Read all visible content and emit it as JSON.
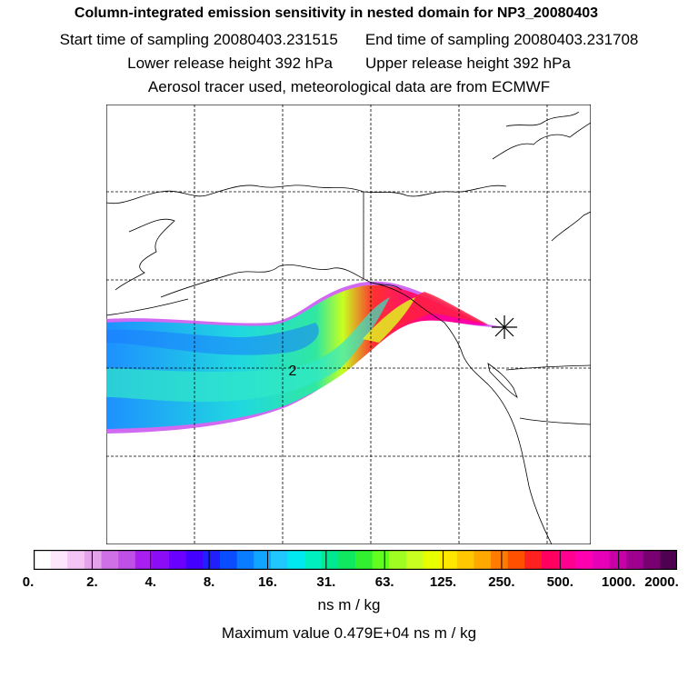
{
  "title": "Column-integrated emission sensitivity in nested domain for NP3_20080403",
  "sampling": {
    "start": "Start time of sampling 20080403.231515",
    "end": "End time of sampling 20080403.231708"
  },
  "release": {
    "lower": "Lower release height  392 hPa",
    "upper": "Upper release height  392 hPa"
  },
  "note": "Aerosol tracer used, meteorological data are from ECMWF",
  "map": {
    "contour_label": "2",
    "release_marker": "asterisk"
  },
  "colorbar": {
    "ticks": [
      "0.",
      "2.",
      "4.",
      "8.",
      "16.",
      "31.",
      "63.",
      "125.",
      "250.",
      "500.",
      "1000.",
      "2000."
    ],
    "colors": [
      "#ffffff",
      "#fbe6fb",
      "#f4c4f4",
      "#e7a2ee",
      "#cf70e6",
      "#c04fe6",
      "#a81ff0",
      "#8c0df5",
      "#6a00ff",
      "#4400ff",
      "#2020ff",
      "#0a4cff",
      "#0a7cff",
      "#10a6ff",
      "#20c8ff",
      "#00e8f0",
      "#00f0c0",
      "#00e890",
      "#10e860",
      "#30f030",
      "#60ff20",
      "#a0ff20",
      "#c8ff20",
      "#e8ff00",
      "#ffe800",
      "#ffc800",
      "#ffa800",
      "#ff7c00",
      "#ff5000",
      "#ff2020",
      "#ff0060",
      "#ff0090",
      "#ff00b0",
      "#e800b8",
      "#c800a8",
      "#a00090",
      "#780070",
      "#500050"
    ],
    "units": "ns m / kg"
  },
  "max_value": "Maximum value  0.479E+04 ns m / kg"
}
